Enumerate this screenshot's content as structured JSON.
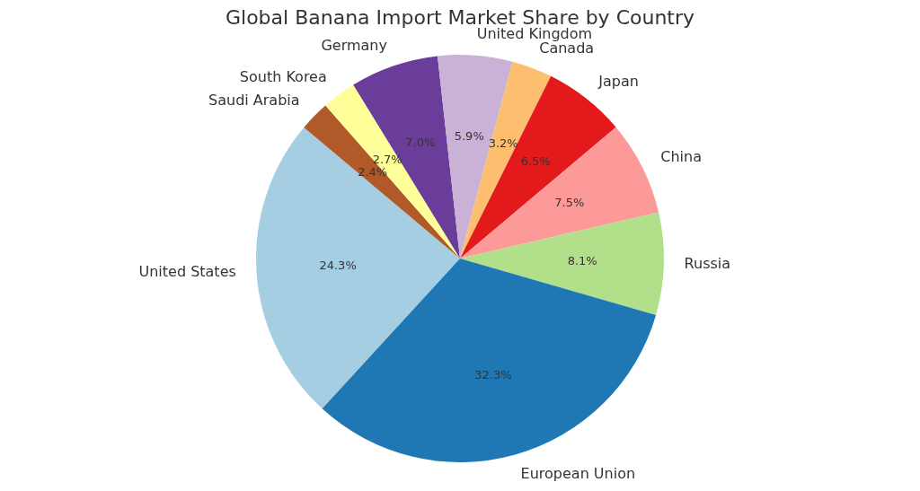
{
  "chart_data": {
    "type": "pie",
    "title": "Global Banana Import Market Share by Country",
    "categories": [
      "United States",
      "Saudi Arabia",
      "South Korea",
      "Germany",
      "United Kingdom",
      "Canada",
      "Japan",
      "China",
      "Russia",
      "European Union"
    ],
    "values": [
      24.3,
      2.4,
      2.7,
      7.0,
      5.9,
      3.2,
      6.5,
      7.5,
      8.1,
      32.3
    ],
    "value_labels": [
      "24.3%",
      "2.4%",
      "2.7%",
      "7.0%",
      "5.9%",
      "3.2%",
      "6.5%",
      "7.5%",
      "8.1%",
      "32.3%"
    ],
    "colors": [
      "#a6cee3",
      "#b15928",
      "#ffff99",
      "#6a3d9a",
      "#cab2d6",
      "#fdbf6f",
      "#e31a1c",
      "#fb9a99",
      "#b2df8a",
      "#1f78b4"
    ],
    "data_labels": true
  }
}
